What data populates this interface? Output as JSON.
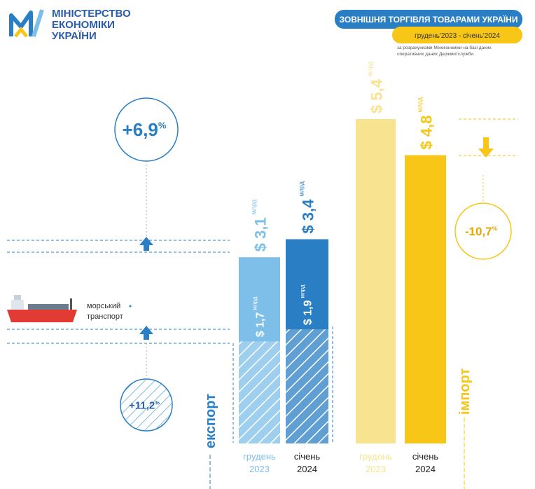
{
  "header": {
    "logo_lines": [
      "МІНІСТЕРСТВО",
      "ЕКОНОМІКИ",
      "УКРАЇНИ"
    ],
    "title": "ЗОВНІШНЯ ТОРГІВЛЯ ТОВАРАМИ УКРАЇНИ",
    "period": "грудень'2023 - січень'2024",
    "source_lines": [
      "за розрахунками Мінекономіки на базі даних",
      "оперативних даних Держмитслужби"
    ]
  },
  "chart_data": [
    {
      "type": "bar",
      "label": "експорт",
      "unit": "млрд",
      "change_suffix": "%",
      "ylim": [
        0,
        5.4
      ],
      "categories": [
        [
          "грудень",
          "2023"
        ],
        [
          "січень",
          "2024"
        ]
      ],
      "series": [
        {
          "colors": [
            "#7dbfe8",
            "#2a7fc4"
          ],
          "values": [
            3.1,
            3.4
          ],
          "value_labels": [
            "$ 3,1",
            "$ 3,4"
          ],
          "change": "+6,9"
        },
        {
          "name": "морський транспорт",
          "colors": [
            "#7dbfe8",
            "#2a7fc4"
          ],
          "values": [
            1.7,
            1.9
          ],
          "value_labels": [
            "$ 1,7",
            "$ 1,9"
          ],
          "change": "+11,2"
        }
      ]
    },
    {
      "type": "bar",
      "label": "імпорт",
      "unit": "млрд",
      "change_suffix": "%",
      "ylim": [
        0,
        5.4
      ],
      "categories": [
        [
          "грудень",
          "2023"
        ],
        [
          "січень",
          "2024"
        ]
      ],
      "series": [
        {
          "colors": [
            "#f8e490",
            "#f7c616"
          ],
          "values": [
            5.4,
            4.8
          ],
          "value_labels": [
            "$ 5,4",
            "$ 4,8"
          ],
          "change": "-10,7"
        }
      ]
    }
  ]
}
